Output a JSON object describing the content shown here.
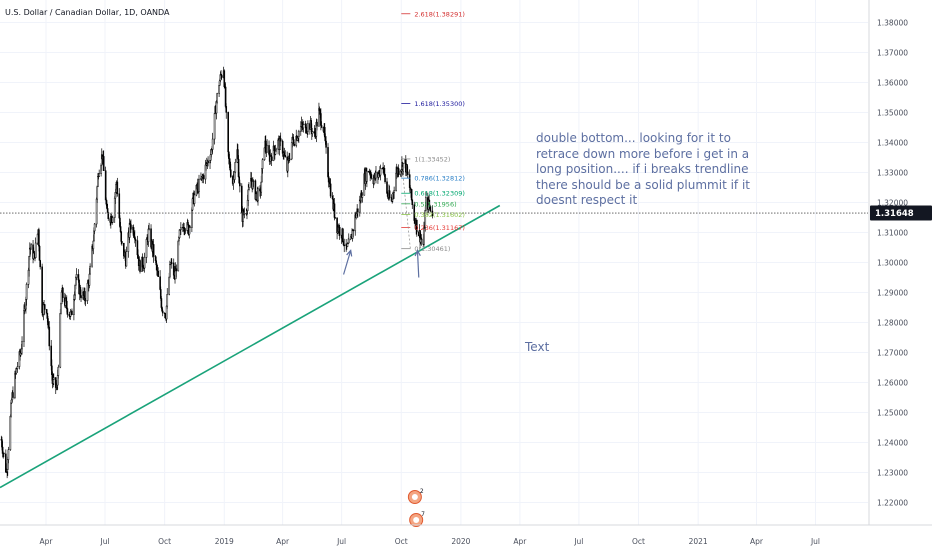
{
  "title": "U.S. Dollar / Canadian Dollar, 1D, OANDA",
  "note": "double bottom...  looking for it to retrace down more before i get in a long position.... if i breaks trendline there should be a solid plummit  if it doesnt respect it",
  "text_label": "Text",
  "price_label": "1.31648",
  "colors": {
    "candle": "#000000",
    "trendline": "#1aa37a",
    "price_line": "#555555",
    "price_badge_bg": "#131722",
    "price_badge_text": "#ffffff",
    "arrow": "#5d6fa1",
    "fib_ext": "#1e1a9c",
    "fib_ext_top": "#d32f2f",
    "grid": "#f0f3fa",
    "axis_text": "#4a4f5c"
  },
  "icons": [
    "event-icon-earnings",
    "event-icon-dividend"
  ],
  "chart_data": {
    "type": "candlestick",
    "symbol": "USDCAD",
    "title": "U.S. Dollar / Canadian Dollar, 1D, OANDA",
    "xlim": [
      "2018-01-20",
      "2021-09-20"
    ],
    "ylim": [
      1.2125,
      1.3875
    ],
    "x_ticks": [
      {
        "label": "Apr",
        "date": "2018-04-01"
      },
      {
        "label": "Jul",
        "date": "2018-07-01"
      },
      {
        "label": "Oct",
        "date": "2018-10-01"
      },
      {
        "label": "2019",
        "date": "2019-01-01"
      },
      {
        "label": "Apr",
        "date": "2019-04-01"
      },
      {
        "label": "Jul",
        "date": "2019-07-01"
      },
      {
        "label": "Oct",
        "date": "2019-10-01"
      },
      {
        "label": "2020",
        "date": "2020-01-01"
      },
      {
        "label": "Apr",
        "date": "2020-04-01"
      },
      {
        "label": "Jul",
        "date": "2020-07-01"
      },
      {
        "label": "Oct",
        "date": "2020-10-01"
      },
      {
        "label": "2021",
        "date": "2021-01-01"
      },
      {
        "label": "Apr",
        "date": "2021-04-01"
      },
      {
        "label": "Jul",
        "date": "2021-07-01"
      }
    ],
    "y_ticks": [
      "1.38000",
      "1.37000",
      "1.36000",
      "1.35000",
      "1.34000",
      "1.33000",
      "1.32000",
      "1.31000",
      "1.30000",
      "1.29000",
      "1.28000",
      "1.27000",
      "1.26000",
      "1.25000",
      "1.24000",
      "1.23000",
      "1.22000"
    ],
    "last_price": 1.31648,
    "price_path": [
      [
        "2018-01-22",
        1.241
      ],
      [
        "2018-01-30",
        1.23
      ],
      [
        "2018-02-07",
        1.254
      ],
      [
        "2018-02-14",
        1.264
      ],
      [
        "2018-02-21",
        1.27
      ],
      [
        "2018-03-01",
        1.289
      ],
      [
        "2018-03-07",
        1.305
      ],
      [
        "2018-03-14",
        1.302
      ],
      [
        "2018-03-20",
        1.311
      ],
      [
        "2018-03-26",
        1.285
      ],
      [
        "2018-04-02",
        1.285
      ],
      [
        "2018-04-11",
        1.26
      ],
      [
        "2018-04-18",
        1.258
      ],
      [
        "2018-04-25",
        1.29
      ],
      [
        "2018-05-03",
        1.285
      ],
      [
        "2018-05-10",
        1.282
      ],
      [
        "2018-05-17",
        1.295
      ],
      [
        "2018-05-24",
        1.29
      ],
      [
        "2018-05-31",
        1.288
      ],
      [
        "2018-06-07",
        1.295
      ],
      [
        "2018-06-14",
        1.31
      ],
      [
        "2018-06-21",
        1.331
      ],
      [
        "2018-06-27",
        1.336
      ],
      [
        "2018-07-04",
        1.316
      ],
      [
        "2018-07-12",
        1.315
      ],
      [
        "2018-07-19",
        1.327
      ],
      [
        "2018-07-26",
        1.306
      ],
      [
        "2018-08-02",
        1.301
      ],
      [
        "2018-08-09",
        1.313
      ],
      [
        "2018-08-16",
        1.31
      ],
      [
        "2018-08-23",
        1.299
      ],
      [
        "2018-08-30",
        1.3
      ],
      [
        "2018-09-06",
        1.31
      ],
      [
        "2018-09-13",
        1.304
      ],
      [
        "2018-09-20",
        1.296
      ],
      [
        "2018-09-27",
        1.285
      ],
      [
        "2018-10-03",
        1.283
      ],
      [
        "2018-10-10",
        1.3
      ],
      [
        "2018-10-17",
        1.295
      ],
      [
        "2018-10-24",
        1.309
      ],
      [
        "2018-10-31",
        1.313
      ],
      [
        "2018-11-07",
        1.311
      ],
      [
        "2018-11-14",
        1.321
      ],
      [
        "2018-11-21",
        1.325
      ],
      [
        "2018-11-28",
        1.328
      ],
      [
        "2018-12-05",
        1.333
      ],
      [
        "2018-12-12",
        1.337
      ],
      [
        "2018-12-19",
        1.352
      ],
      [
        "2018-12-24",
        1.36
      ],
      [
        "2018-12-31",
        1.365
      ],
      [
        "2019-01-07",
        1.335
      ],
      [
        "2019-01-14",
        1.327
      ],
      [
        "2019-01-21",
        1.337
      ],
      [
        "2019-01-28",
        1.315
      ],
      [
        "2019-02-04",
        1.318
      ],
      [
        "2019-02-11",
        1.328
      ],
      [
        "2019-02-18",
        1.323
      ],
      [
        "2019-02-25",
        1.322
      ],
      [
        "2019-03-04",
        1.34
      ],
      [
        "2019-03-11",
        1.335
      ],
      [
        "2019-03-18",
        1.337
      ],
      [
        "2019-03-25",
        1.34
      ],
      [
        "2019-04-01",
        1.338
      ],
      [
        "2019-04-08",
        1.331
      ],
      [
        "2019-04-15",
        1.34
      ],
      [
        "2019-04-22",
        1.342
      ],
      [
        "2019-04-29",
        1.345
      ],
      [
        "2019-05-06",
        1.345
      ],
      [
        "2019-05-13",
        1.346
      ],
      [
        "2019-05-20",
        1.342
      ],
      [
        "2019-05-27",
        1.35
      ],
      [
        "2019-06-03",
        1.345
      ],
      [
        "2019-06-10",
        1.33
      ],
      [
        "2019-06-17",
        1.32
      ],
      [
        "2019-06-24",
        1.312
      ],
      [
        "2019-07-01",
        1.31
      ],
      [
        "2019-07-08",
        1.304
      ],
      [
        "2019-07-15",
        1.307
      ],
      [
        "2019-07-22",
        1.315
      ],
      [
        "2019-07-29",
        1.32
      ],
      [
        "2019-08-05",
        1.328
      ],
      [
        "2019-08-12",
        1.331
      ],
      [
        "2019-08-19",
        1.328
      ],
      [
        "2019-08-26",
        1.329
      ],
      [
        "2019-09-02",
        1.333
      ],
      [
        "2019-09-09",
        1.323
      ],
      [
        "2019-09-16",
        1.32
      ],
      [
        "2019-09-23",
        1.33
      ],
      [
        "2019-09-30",
        1.332
      ],
      [
        "2019-10-07",
        1.333
      ],
      [
        "2019-10-14",
        1.325
      ],
      [
        "2019-10-21",
        1.315
      ],
      [
        "2019-10-28",
        1.31
      ],
      [
        "2019-11-04",
        1.306
      ],
      [
        "2019-11-08",
        1.32
      ],
      [
        "2019-11-13",
        1.319
      ],
      [
        "2019-11-18",
        1.317
      ]
    ],
    "trendline": {
      "from": [
        "2018-01-20",
        1.225
      ],
      "to": [
        "2020-03-01",
        1.319
      ]
    },
    "horizontal_line": 1.31648,
    "fib_retracement": {
      "from": [
        "2019-10-01",
        1.33452
      ],
      "to": [
        "2019-10-15",
        1.30461
      ],
      "levels": [
        {
          "label": "1(1.33452)",
          "value": 1.33452,
          "color": "#8a8a8a"
        },
        {
          "label": "0.786(1.32812)",
          "value": 1.32812,
          "color": "#2a7fc7"
        },
        {
          "label": "0.618(1.32309)",
          "value": 1.32309,
          "color": "#00a76f"
        },
        {
          "label": "0.5(1.31956)",
          "value": 1.31956,
          "color": "#2fa84f"
        },
        {
          "label": "0.382(1.31602)",
          "value": 1.31602,
          "color": "#8bc34a"
        },
        {
          "label": "0.236(1.31167)",
          "value": 1.31167,
          "color": "#e53935"
        },
        {
          "label": "0(1.30461)",
          "value": 1.30461,
          "color": "#8a8a8a"
        }
      ]
    },
    "fib_extension": [
      {
        "label": "2.618(1.38291)",
        "value": 1.38291,
        "color": "#d32f2f"
      },
      {
        "label": "1.618(1.35300)",
        "value": 1.353,
        "color": "#1e1a9c"
      }
    ],
    "annotation_arrows": [
      {
        "tip": [
          "2019-07-15",
          1.304
        ],
        "tail": [
          "2019-07-04",
          1.296
        ]
      },
      {
        "tip": [
          "2019-10-26",
          1.304
        ],
        "tail": [
          "2019-10-28",
          1.295
        ]
      }
    ],
    "event_markers": [
      "2019-10-22",
      "2019-10-24"
    ]
  }
}
